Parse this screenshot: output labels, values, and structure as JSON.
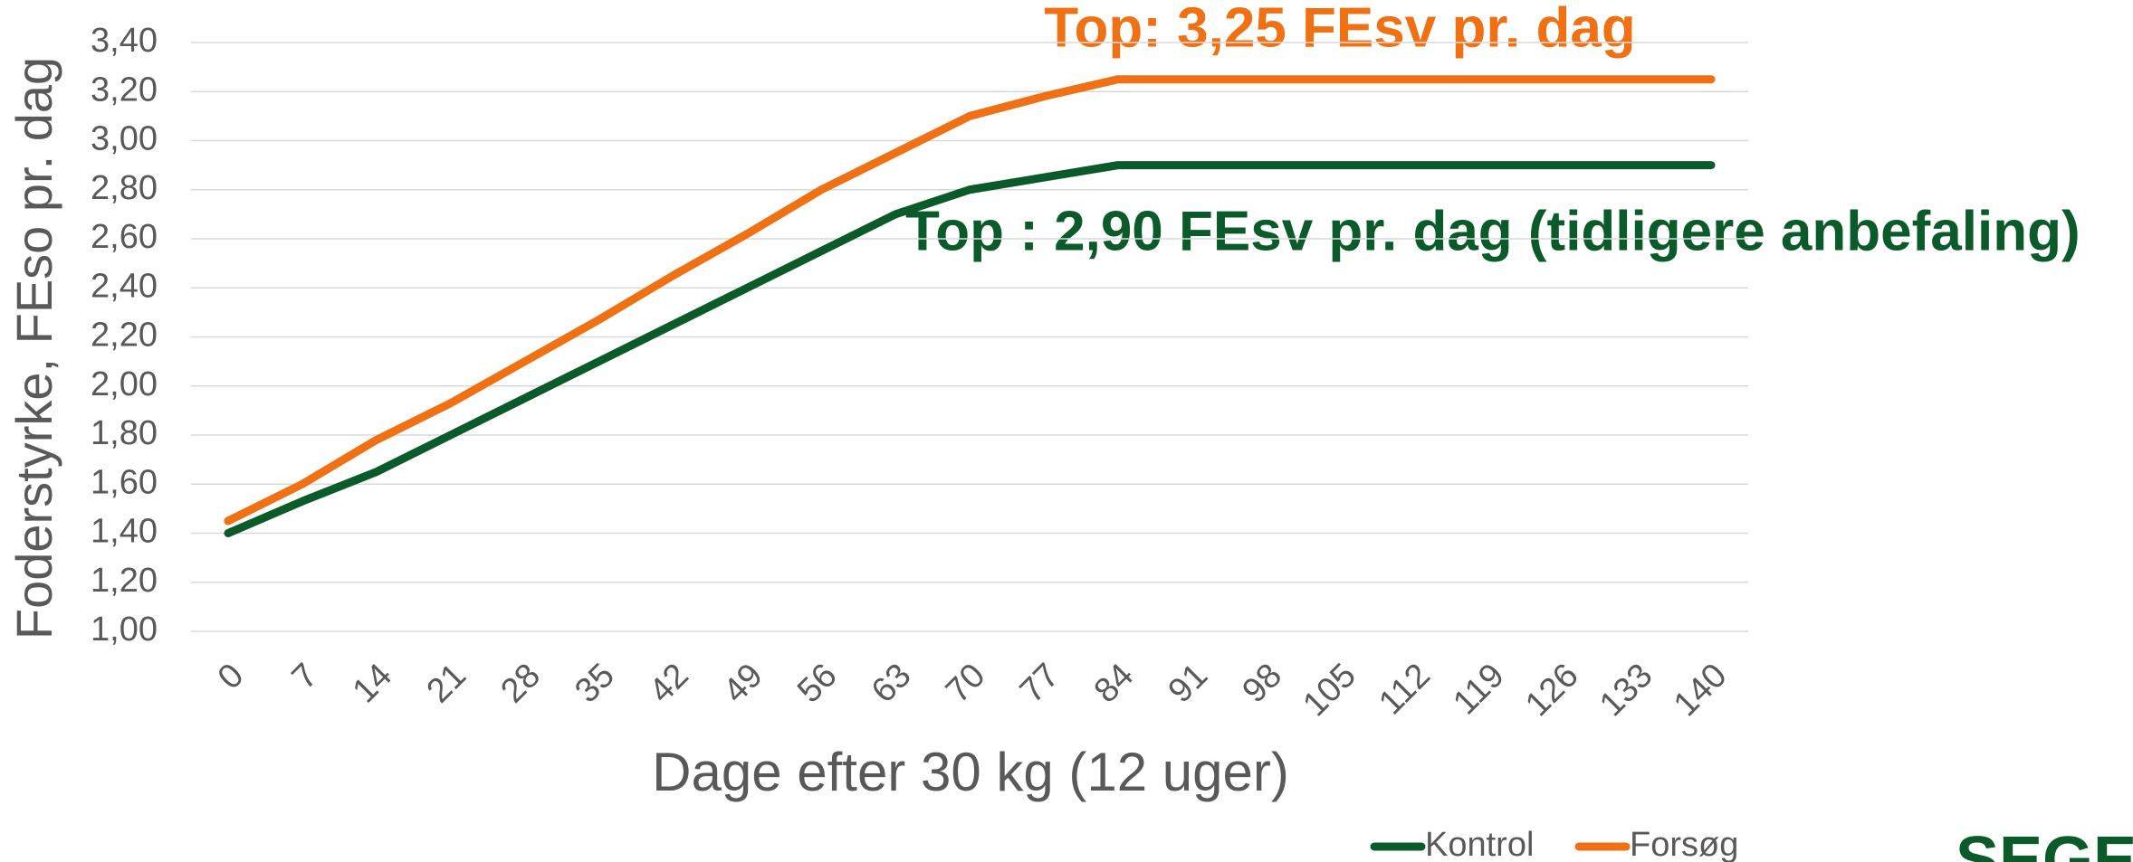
{
  "chart_data": {
    "type": "line",
    "y_label": "Foderstyrke, FEso pr. dag",
    "x_label": "Dage efter 30 kg (12 uger)",
    "annotations": [
      "Top: 3,25 FEsv pr. dag",
      "Top : 2,90 FEsv pr. dag (tidligere anbefaling)"
    ],
    "logo": "SEGES",
    "categories": [
      "0",
      "7",
      "14",
      "21",
      "28",
      "35",
      "42",
      "49",
      "56",
      "63",
      "70",
      "77",
      "84",
      "91",
      "98",
      "105",
      "112",
      "119",
      "126",
      "133",
      "140"
    ],
    "series": [
      {
        "name": "Kontrol",
        "color": "#0b5a2a",
        "values": [
          1.4,
          1.53,
          1.65,
          1.8,
          1.95,
          2.1,
          2.25,
          2.4,
          2.55,
          2.7,
          2.8,
          2.85,
          2.9,
          2.9,
          2.9,
          2.9,
          2.9,
          2.9,
          2.9,
          2.9,
          2.9
        ]
      },
      {
        "name": "Forsøg",
        "color": "#f07014",
        "values": [
          1.45,
          1.6,
          1.78,
          1.93,
          2.1,
          2.27,
          2.45,
          2.62,
          2.8,
          2.95,
          3.1,
          3.18,
          3.25,
          3.25,
          3.25,
          3.25,
          3.25,
          3.25,
          3.25,
          3.25,
          3.25
        ]
      }
    ],
    "ylim": [
      1.0,
      3.4
    ],
    "yticks": [
      {
        "value": 1.0,
        "label": "1,00"
      },
      {
        "value": 1.2,
        "label": "1,20"
      },
      {
        "value": 1.4,
        "label": "1,40"
      },
      {
        "value": 1.6,
        "label": "1,60"
      },
      {
        "value": 1.8,
        "label": "1,80"
      },
      {
        "value": 2.0,
        "label": "2,00"
      },
      {
        "value": 2.2,
        "label": "2,20"
      },
      {
        "value": 2.4,
        "label": "2,40"
      },
      {
        "value": 2.6,
        "label": "2,60"
      },
      {
        "value": 2.8,
        "label": "2,80"
      },
      {
        "value": 3.0,
        "label": "3,00"
      },
      {
        "value": 3.2,
        "label": "3,20"
      },
      {
        "value": 3.4,
        "label": "3,40"
      }
    ],
    "grid": true,
    "legend": "bottom"
  }
}
